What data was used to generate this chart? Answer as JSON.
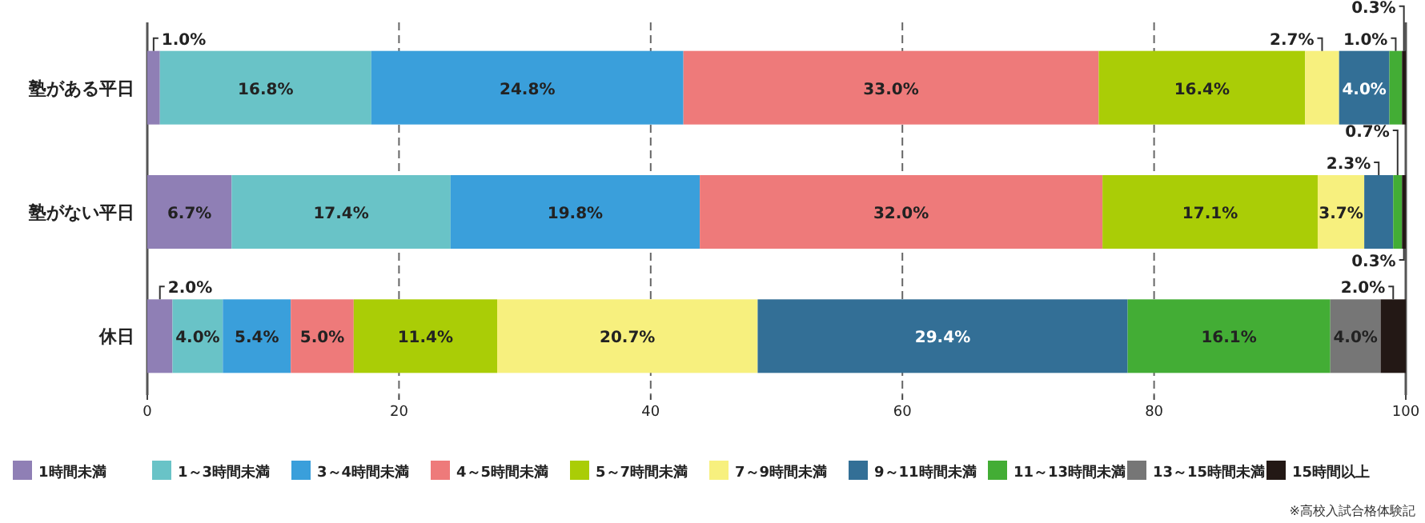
{
  "chart_data": {
    "type": "bar",
    "orientation": "horizontal",
    "stacked": true,
    "categories": [
      "塾がある平日",
      "塾がない平日",
      "休日"
    ],
    "series": [
      {
        "name": "1時間未満",
        "color": "#8f7fb5",
        "values": [
          1.0,
          6.7,
          2.0
        ],
        "value_labels": [
          "1.0%",
          "6.7%",
          "2.0%"
        ]
      },
      {
        "name": "1～3時間未満",
        "color": "#69c3c7",
        "values": [
          16.8,
          17.4,
          4.0
        ],
        "value_labels": [
          "16.8%",
          "17.4%",
          "4.0%"
        ]
      },
      {
        "name": "3～4時間未満",
        "color": "#3a9fdb",
        "values": [
          24.8,
          19.8,
          5.4
        ],
        "value_labels": [
          "24.8%",
          "19.8%",
          "5.4%"
        ]
      },
      {
        "name": "4～5時間未満",
        "color": "#ee7a7a",
        "values": [
          33.0,
          32.0,
          5.0
        ],
        "value_labels": [
          "33.0%",
          "32.0%",
          "5.0%"
        ]
      },
      {
        "name": "5～7時間未満",
        "color": "#aacd06",
        "values": [
          16.4,
          17.1,
          11.4
        ],
        "value_labels": [
          "16.4%",
          "17.1%",
          "11.4%"
        ]
      },
      {
        "name": "7～9時間未満",
        "color": "#f7f07e",
        "values": [
          2.7,
          3.7,
          20.7
        ],
        "value_labels": [
          "2.7%",
          "3.7%",
          "20.7%"
        ]
      },
      {
        "name": "9～11時間未満",
        "color": "#336f96",
        "values": [
          4.0,
          2.3,
          29.4
        ],
        "value_labels": [
          "4.0%",
          "2.3%",
          "29.4%"
        ]
      },
      {
        "name": "11～13時間未満",
        "color": "#43ad35",
        "values": [
          1.0,
          0.7,
          16.1
        ],
        "value_labels": [
          "1.0%",
          "0.7%",
          "16.1%"
        ]
      },
      {
        "name": "13～15時間未満",
        "color": "#767676",
        "values": [
          null,
          null,
          4.0
        ],
        "value_labels": [
          null,
          null,
          "4.0%"
        ]
      },
      {
        "name": "15時間以上",
        "color": "#231815",
        "values": [
          0.3,
          0.3,
          2.0
        ],
        "value_labels": [
          "0.3%",
          "0.3%",
          "2.0%"
        ]
      }
    ],
    "xlim": [
      0,
      100
    ],
    "xticks": [
      0,
      20,
      40,
      60,
      80,
      100
    ],
    "grid": "x",
    "legend": "bottom",
    "annotations": [
      "※高校入試合格体験記"
    ]
  }
}
